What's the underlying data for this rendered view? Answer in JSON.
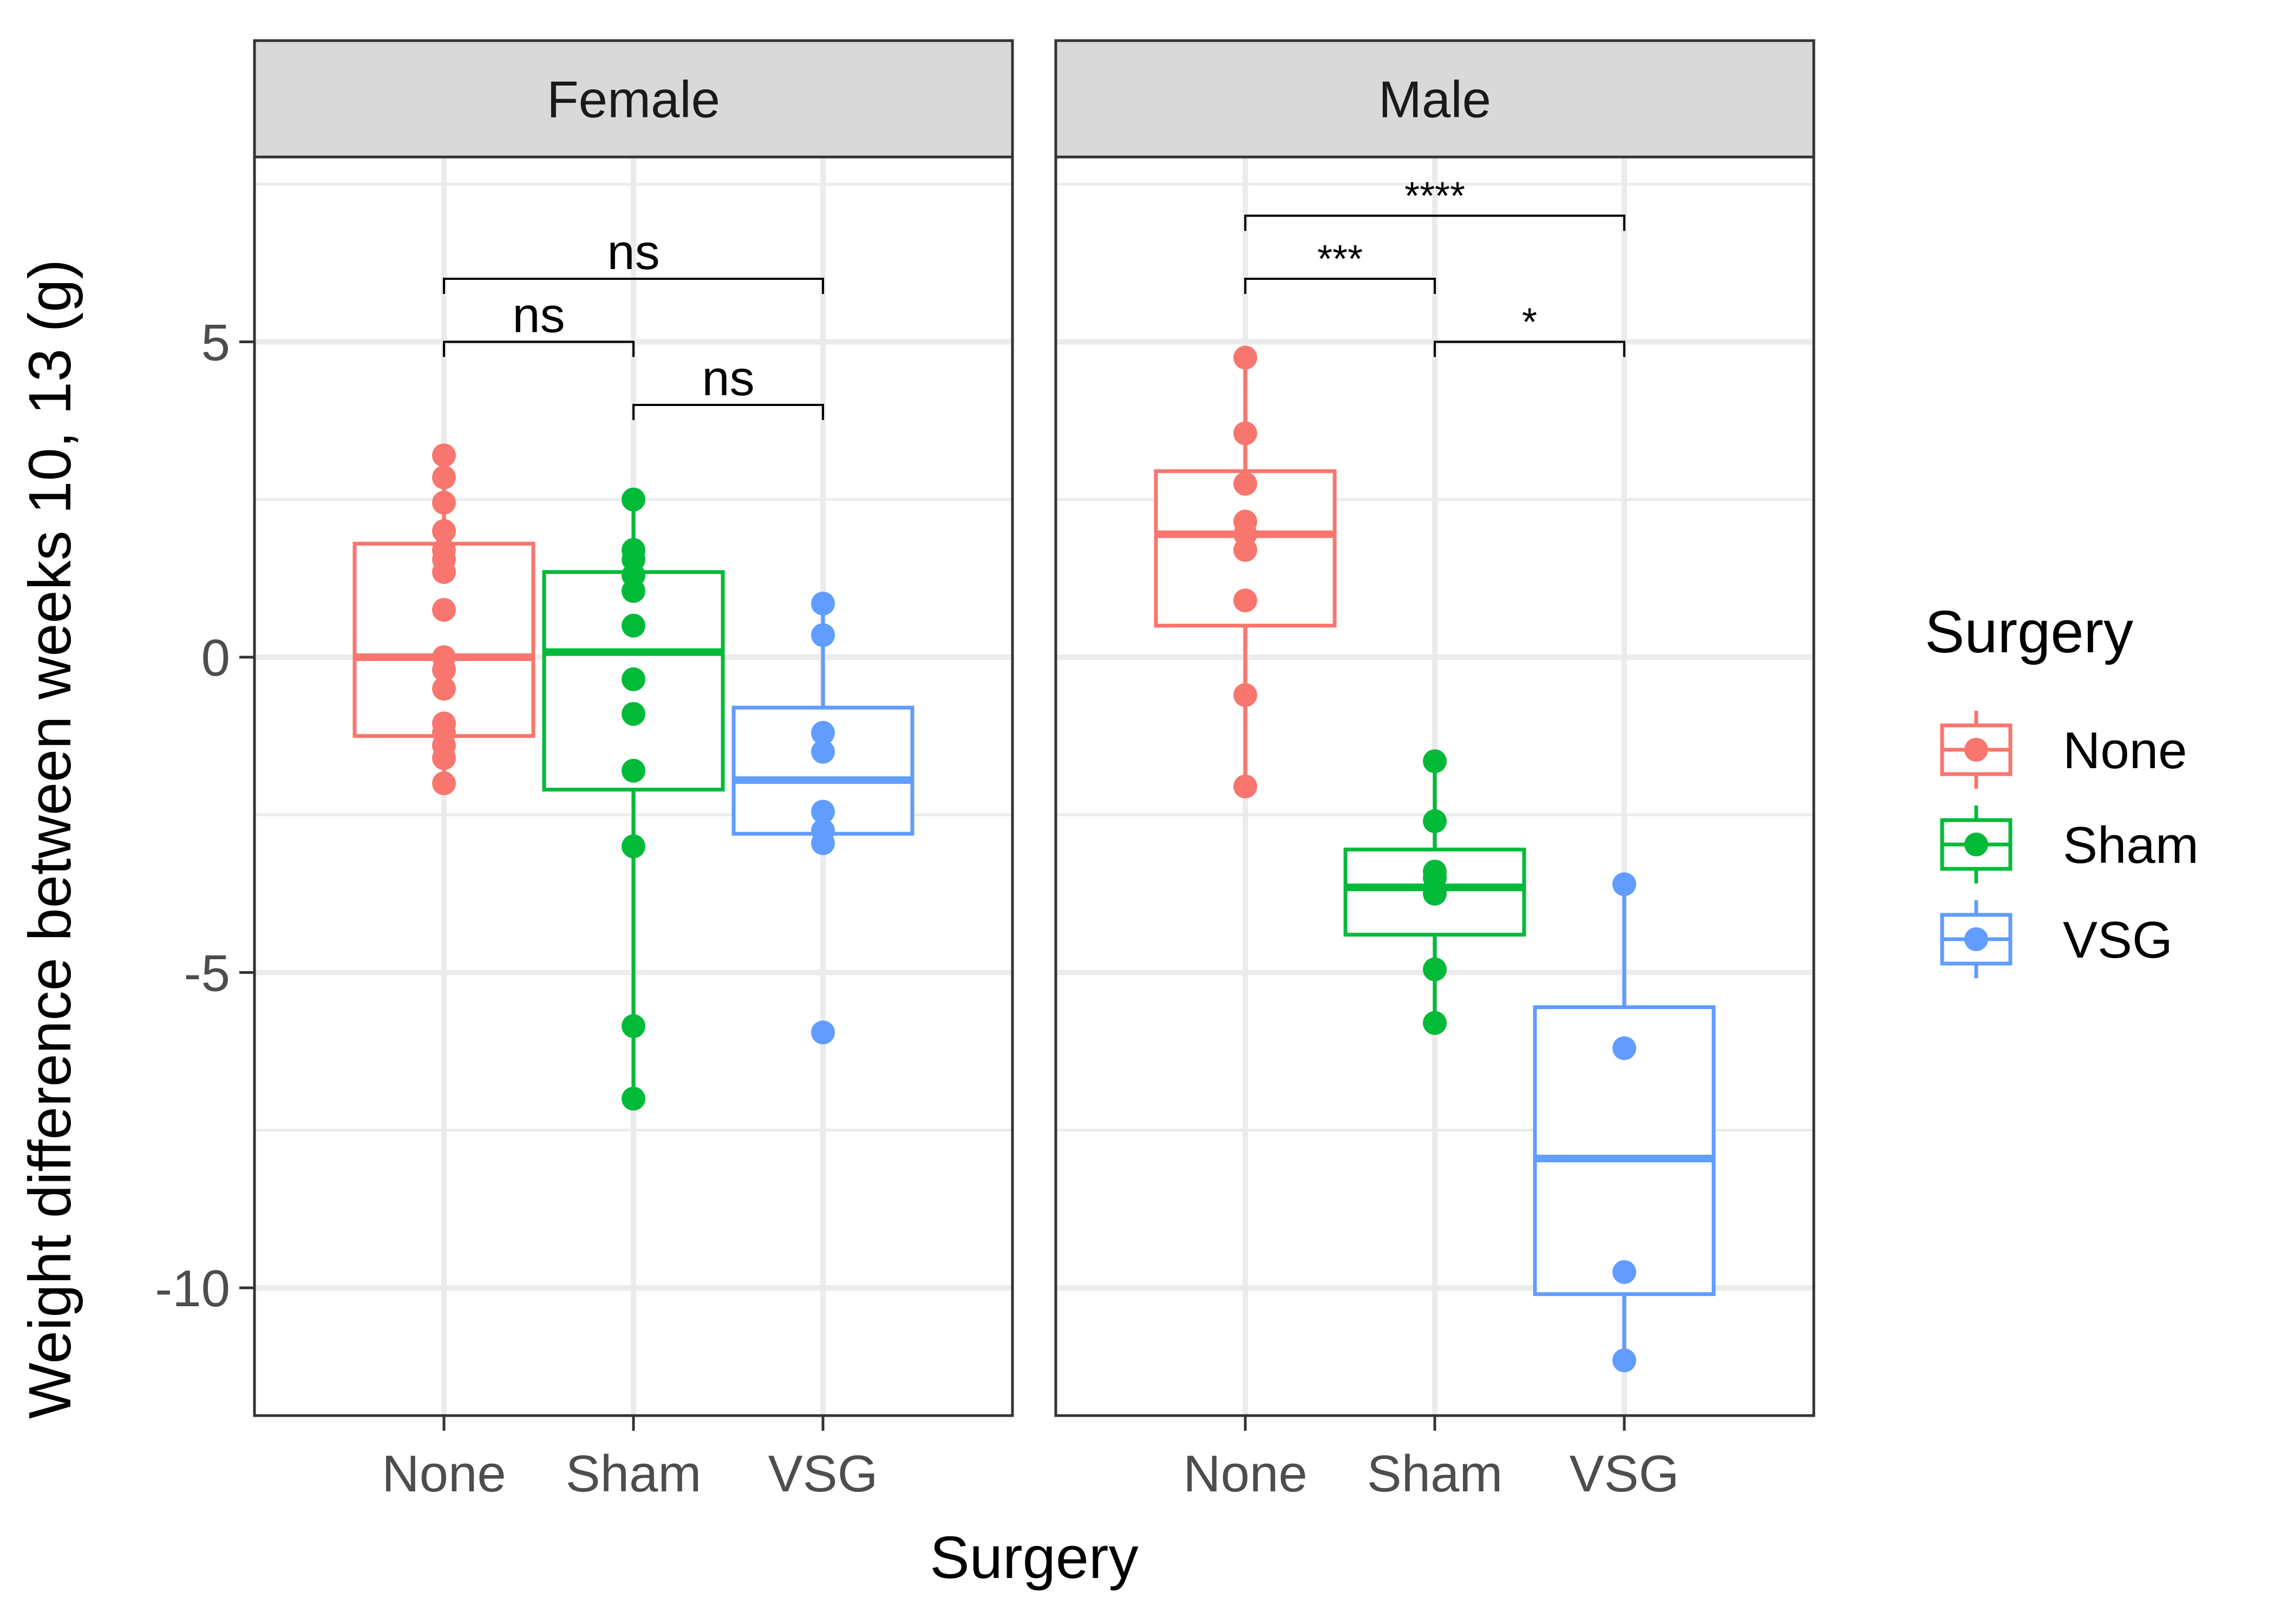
{
  "chart_data": {
    "type": "boxplot",
    "ylabel": "Weight difference between weeks 10, 13 (g)",
    "xlabel": "Surgery",
    "ylim": [
      -12,
      8
    ],
    "yticks": [
      5,
      0,
      -5,
      -10
    ],
    "ytick_labels": [
      "5",
      "0",
      "-5",
      "-10"
    ],
    "categories": [
      "None",
      "Sham",
      "VSG"
    ],
    "grid": true,
    "legend": {
      "title": "Surgery",
      "position": "right",
      "entries": [
        "None",
        "Sham",
        "VSG"
      ]
    },
    "colors": {
      "None": "#F8766D",
      "Sham": "#00BA38",
      "VSG": "#619CFF"
    },
    "panels": [
      {
        "facet": "Female",
        "groups": [
          {
            "category": "None",
            "box": {
              "whisker_low": -2.0,
              "q1": -1.25,
              "median": 0.0,
              "q3": 1.8,
              "whisker_high": 3.2
            },
            "points": [
              3.2,
              2.85,
              2.45,
              2.0,
              1.7,
              1.55,
              1.35,
              0.75,
              0.0,
              -0.2,
              -0.5,
              -1.05,
              -1.2,
              -1.4,
              -1.6,
              -2.0
            ]
          },
          {
            "category": "Sham",
            "box": {
              "whisker_low": -7.0,
              "q1": -2.1,
              "median": 0.08,
              "q3": 1.35,
              "whisker_high": 2.5
            },
            "points": [
              2.5,
              1.7,
              1.55,
              1.3,
              1.05,
              0.5,
              -0.35,
              -0.9,
              -1.8,
              -3.0,
              -5.85,
              -7.0
            ]
          },
          {
            "category": "VSG",
            "box": {
              "whisker_low": -3.0,
              "q1": -2.8,
              "median": -1.95,
              "q3": -0.8,
              "whisker_high": 0.85
            },
            "points": [
              0.85,
              0.35,
              -1.2,
              -1.5,
              -2.45,
              -2.75,
              -2.95,
              -5.95
            ]
          }
        ],
        "comparisons": [
          {
            "from": "None",
            "to": "VSG",
            "y": 6.0,
            "label": "ns"
          },
          {
            "from": "None",
            "to": "Sham",
            "y": 5.0,
            "label": "ns"
          },
          {
            "from": "Sham",
            "to": "VSG",
            "y": 4.0,
            "label": "ns"
          }
        ]
      },
      {
        "facet": "Male",
        "groups": [
          {
            "category": "None",
            "box": {
              "whisker_low": -2.05,
              "q1": 0.5,
              "median": 1.95,
              "q3": 2.95,
              "whisker_high": 4.75
            },
            "points": [
              4.75,
              3.55,
              2.75,
              2.15,
              1.95,
              1.7,
              0.9,
              -0.6,
              -2.05
            ]
          },
          {
            "category": "Sham",
            "box": {
              "whisker_low": -5.8,
              "q1": -4.4,
              "median": -3.65,
              "q3": -3.05,
              "whisker_high": -1.65
            },
            "points": [
              -1.65,
              -2.6,
              -3.4,
              -3.5,
              -3.75,
              -4.95,
              -5.8
            ]
          },
          {
            "category": "VSG",
            "box": {
              "whisker_low": -11.15,
              "q1": -10.1,
              "median": -7.95,
              "q3": -5.55,
              "whisker_high": -3.6
            },
            "points": [
              -3.6,
              -6.2,
              -9.75,
              -11.15
            ]
          }
        ],
        "comparisons": [
          {
            "from": "None",
            "to": "VSG",
            "y": 7.0,
            "label": "****"
          },
          {
            "from": "None",
            "to": "Sham",
            "y": 6.0,
            "label": "***"
          },
          {
            "from": "Sham",
            "to": "VSG",
            "y": 5.0,
            "label": "*"
          }
        ]
      }
    ]
  }
}
